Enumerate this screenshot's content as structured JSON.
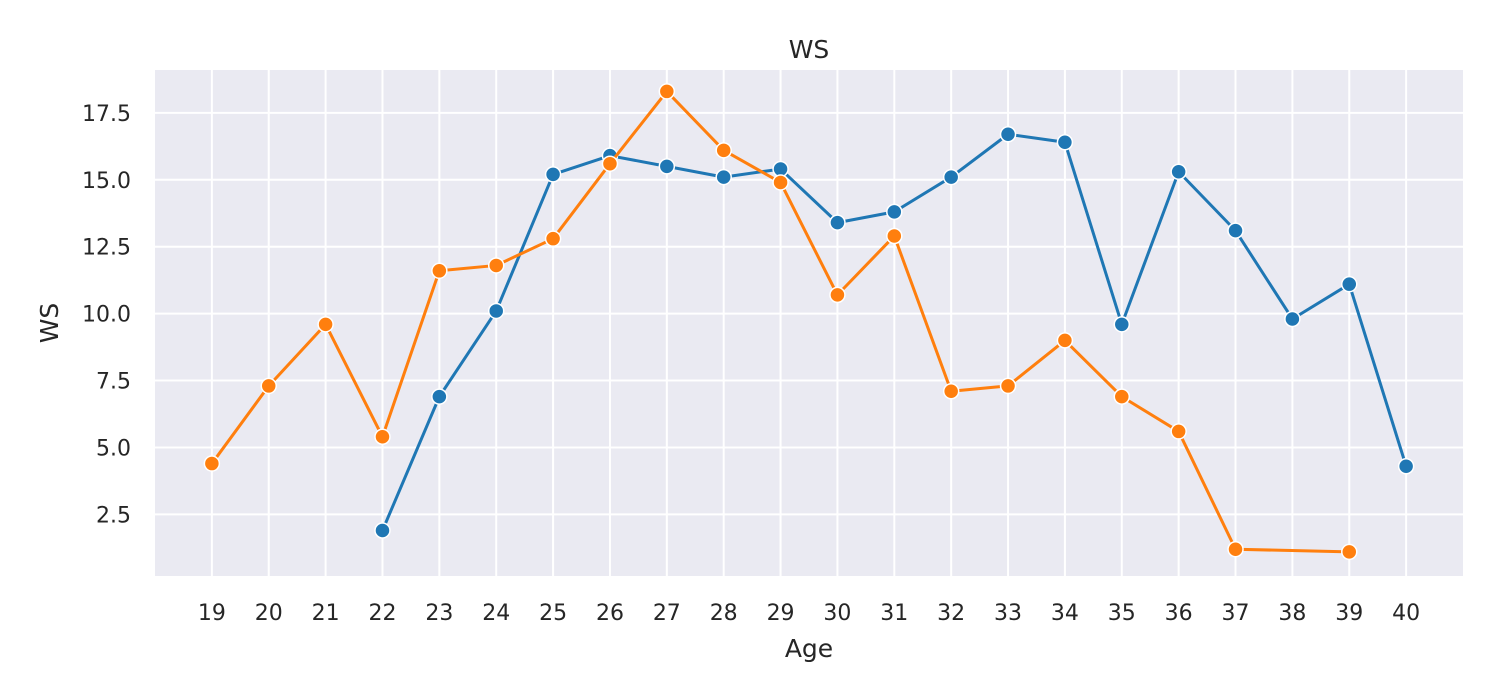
{
  "chart_data": {
    "type": "line",
    "title": "WS",
    "xlabel": "Age",
    "ylabel": "WS",
    "x": [
      19,
      20,
      21,
      22,
      23,
      24,
      25,
      26,
      27,
      28,
      29,
      30,
      31,
      32,
      33,
      34,
      35,
      36,
      37,
      38,
      39,
      40
    ],
    "xlim": [
      18,
      41
    ],
    "ylim": [
      0.2,
      19.1
    ],
    "yticks": [
      "2.5",
      "5.0",
      "7.5",
      "10.0",
      "12.5",
      "15.0",
      "17.5"
    ],
    "grid": true,
    "background": "#EAEAF2",
    "series": [
      {
        "color": "#1F77B4",
        "points": [
          [
            22,
            1.9
          ],
          [
            23,
            6.9
          ],
          [
            24,
            10.1
          ],
          [
            25,
            15.2
          ],
          [
            26,
            15.9
          ],
          [
            27,
            15.5
          ],
          [
            28,
            15.1
          ],
          [
            29,
            15.4
          ],
          [
            30,
            13.4
          ],
          [
            31,
            13.8
          ],
          [
            32,
            15.1
          ],
          [
            33,
            16.7
          ],
          [
            34,
            16.4
          ],
          [
            35,
            9.6
          ],
          [
            36,
            15.3
          ],
          [
            37,
            13.1
          ],
          [
            38,
            9.8
          ],
          [
            39,
            11.1
          ],
          [
            40,
            4.3
          ]
        ]
      },
      {
        "color": "#FF7F0E",
        "points": [
          [
            19,
            4.4
          ],
          [
            20,
            7.3
          ],
          [
            21,
            9.6
          ],
          [
            22,
            5.4
          ],
          [
            23,
            11.6
          ],
          [
            24,
            11.8
          ],
          [
            25,
            12.8
          ],
          [
            26,
            15.6
          ],
          [
            27,
            18.3
          ],
          [
            28,
            16.1
          ],
          [
            29,
            14.9
          ],
          [
            30,
            10.7
          ],
          [
            31,
            12.9
          ],
          [
            32,
            7.1
          ],
          [
            33,
            7.3
          ],
          [
            34,
            9.0
          ],
          [
            35,
            6.9
          ],
          [
            36,
            5.6
          ],
          [
            37,
            1.2
          ],
          [
            39,
            1.1
          ]
        ]
      }
    ]
  }
}
